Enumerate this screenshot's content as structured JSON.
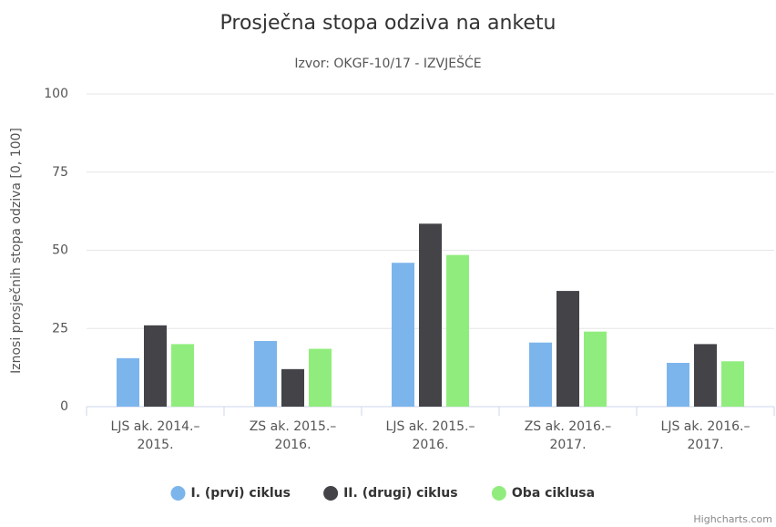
{
  "chart_data": {
    "type": "bar",
    "title": "Prosječna stopa odziva na anketu",
    "subtitle": "Izvor:  OKGF-10/17 - IZVJEŠĆE",
    "y_axis_label": "Iznosi prosječnih stopa odziva [0, 100]",
    "credits": "Highcharts.com",
    "categories": [
      "LJS ak. 2014.–2015.",
      "ZS ak. 2015.–2016.",
      "LJS ak. 2015.–2016.",
      "ZS ak. 2016.–2017.",
      "LJS ak. 2016.–2017."
    ],
    "series": [
      {
        "name": "I. (prvi) ciklus",
        "color": "#7cb5ec",
        "values": [
          15.5,
          21,
          46,
          20.5,
          14
        ]
      },
      {
        "name": "II. (drugi) ciklus",
        "color": "#434348",
        "values": [
          26,
          12,
          58.5,
          37,
          20
        ]
      },
      {
        "name": "Oba ciklusa",
        "color": "#90ed7d",
        "values": [
          20,
          18.5,
          48.5,
          24,
          14.5
        ]
      }
    ],
    "ylim": [
      0,
      100
    ],
    "yticks": [
      0,
      25,
      50,
      75,
      100
    ],
    "grid": true,
    "legend": "bottom"
  }
}
